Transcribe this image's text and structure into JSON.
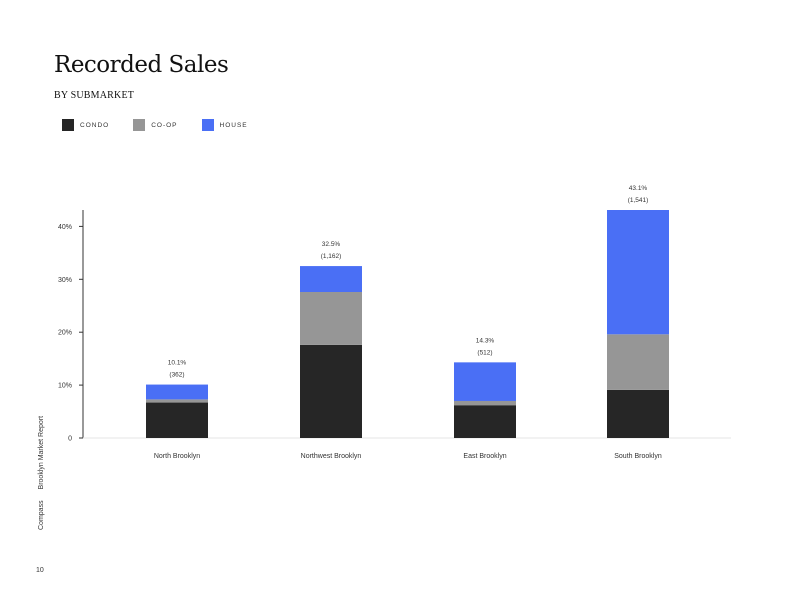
{
  "header": {
    "title": "Recorded Sales",
    "subtitle": "BY SUBMARKET"
  },
  "legend": [
    {
      "label": "CONDO",
      "color": "#262626"
    },
    {
      "label": "CO-OP",
      "color": "#969696"
    },
    {
      "label": "HOUSE",
      "color": "#4a6ff5"
    }
  ],
  "chart_data": {
    "type": "bar",
    "stacked": true,
    "categories": [
      "North Brooklyn",
      "Northwest Brooklyn",
      "East Brooklyn",
      "South Brooklyn"
    ],
    "series": [
      {
        "name": "CONDO",
        "color": "#262626",
        "values": [
          6.7,
          17.6,
          6.2,
          9.1
        ]
      },
      {
        "name": "CO-OP",
        "color": "#969696",
        "values": [
          0.6,
          10.0,
          0.8,
          10.5
        ]
      },
      {
        "name": "HOUSE",
        "color": "#4a6ff5",
        "values": [
          2.8,
          4.9,
          7.3,
          23.5
        ]
      }
    ],
    "totals": [
      10.1,
      32.5,
      14.3,
      43.1
    ],
    "labels_pct": [
      "10.1%",
      "32.5%",
      "14.3%",
      "43.1%"
    ],
    "labels_count": [
      "(362)",
      "(1,162)",
      "(512)",
      "(1,541)"
    ],
    "y_ticks": [
      0,
      10,
      20,
      30,
      40
    ],
    "y_tick_labels": [
      "0",
      "10%",
      "20%",
      "30%",
      "40%"
    ],
    "ylim": [
      0,
      43.1
    ],
    "grid": false,
    "legend_position": "top-left"
  },
  "footer": {
    "publisher": "Compass",
    "report": "Brooklyn Market Report",
    "page_number": "10"
  }
}
